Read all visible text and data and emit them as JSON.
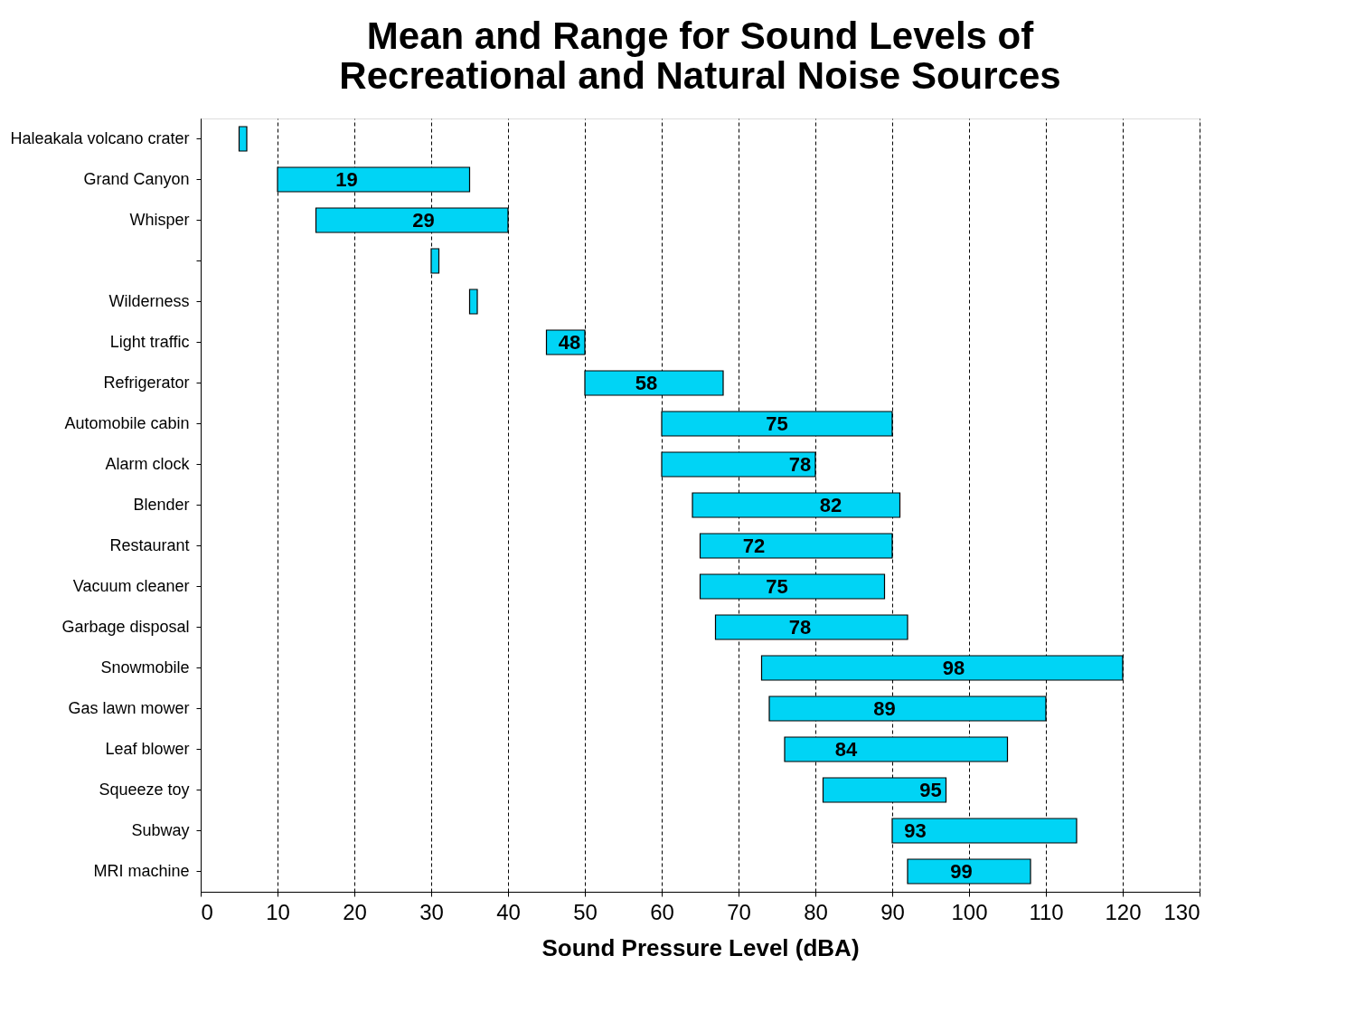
{
  "chart_data": {
    "type": "bar",
    "orientation": "horizontal",
    "title": [
      "Mean and Range for Sound Levels of",
      "Recreational and Natural Noise Sources"
    ],
    "xlabel": "Sound Pressure Level (dBA)",
    "categories": [
      "Haleakala volcano crater",
      "Grand Canyon",
      "Whisper",
      null,
      "Wilderness",
      "Light traffic",
      "Refrigerator",
      "Automobile cabin",
      "Alarm clock",
      "Blender",
      "Restaurant",
      "Vacuum cleaner",
      "Garbage disposal",
      "Snowmobile",
      "Gas lawn mower",
      "Leaf blower",
      "Squeeze toy",
      "Subway",
      "MRI machine"
    ],
    "base": [
      5,
      10,
      15,
      30,
      35,
      45,
      50,
      60,
      60,
      64,
      65,
      65,
      67,
      73,
      74,
      76,
      81,
      90,
      92
    ],
    "values": [
      1,
      25,
      25,
      1,
      1,
      5,
      18,
      30,
      20,
      27,
      25,
      24,
      25,
      47,
      36,
      29,
      16,
      24,
      16
    ],
    "annotations": [
      {
        "text": "19",
        "x": 19,
        "y": "Grand Canyon"
      },
      {
        "text": "29",
        "x": 29,
        "y": "Whisper"
      },
      {
        "text": "48",
        "x": 48,
        "y": "Light traffic"
      },
      {
        "text": "58",
        "x": 58,
        "y": "Refrigerator"
      },
      {
        "text": "75",
        "x": 75,
        "y": "Automobile cabin"
      },
      {
        "text": "78",
        "x": 78,
        "y": "Alarm clock"
      },
      {
        "text": "82",
        "x": 82,
        "y": "Blender"
      },
      {
        "text": "72",
        "x": 72,
        "y": "Restaurant"
      },
      {
        "text": "75",
        "x": 75,
        "y": "Vacuum cleaner"
      },
      {
        "text": "78",
        "x": 78,
        "y": "Garbage disposal"
      },
      {
        "text": "98",
        "x": 98,
        "y": "Snowmobile"
      },
      {
        "text": "89",
        "x": 89,
        "y": "Gas lawn mower"
      },
      {
        "text": "84",
        "x": 84,
        "y": "Leaf blower"
      },
      {
        "text": "95",
        "x": 95,
        "y": "Squeeze toy"
      },
      {
        "text": "93",
        "x": 93,
        "y": "Subway"
      },
      {
        "text": "99",
        "x": 99,
        "y": "MRI machine"
      }
    ],
    "color": "#00d4f5",
    "xlim": [
      0,
      130
    ],
    "xticks": [
      0,
      10,
      20,
      30,
      40,
      50,
      60,
      70,
      80,
      90,
      100,
      110,
      120,
      130
    ],
    "grid": "x"
  }
}
